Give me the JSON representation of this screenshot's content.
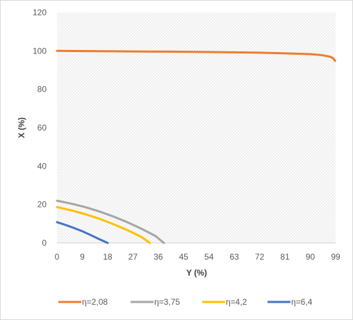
{
  "chart_data": {
    "type": "line",
    "title": "",
    "xlabel": "Y (%)",
    "ylabel": "X (%)",
    "xlim": [
      0,
      99
    ],
    "ylim": [
      0,
      120
    ],
    "xticks": [
      0,
      9,
      18,
      27,
      36,
      45,
      54,
      63,
      72,
      81,
      90,
      99
    ],
    "yticks": [
      0,
      20,
      40,
      60,
      80,
      100,
      120
    ],
    "grid": "hatched-plot-area",
    "legend_position": "bottom",
    "series": [
      {
        "name": "η=2,08",
        "color": "#ED7D31",
        "x": [
          0,
          10,
          20,
          30,
          40,
          50,
          60,
          70,
          80,
          90,
          94,
          97,
          98,
          98.8
        ],
        "y": [
          100,
          99.9,
          99.8,
          99.7,
          99.6,
          99.5,
          99.3,
          99.1,
          98.8,
          98.3,
          97.8,
          97,
          96.3,
          94.8
        ]
      },
      {
        "name": "η=3,75",
        "color": "#A5A5A5",
        "x": [
          0,
          5,
          10,
          15,
          20,
          25,
          30,
          35,
          38
        ],
        "y": [
          22,
          20.5,
          18.7,
          16.4,
          13.8,
          10.8,
          7.4,
          3.6,
          0
        ]
      },
      {
        "name": "η=4,2",
        "color": "#FFC000",
        "x": [
          0,
          5,
          10,
          15,
          20,
          25,
          30,
          33
        ],
        "y": [
          18.7,
          17,
          15,
          12.6,
          9.8,
          6.7,
          3.1,
          0
        ]
      },
      {
        "name": "η=6,4",
        "color": "#4472C4",
        "x": [
          0,
          3,
          6,
          9,
          12,
          15,
          18
        ],
        "y": [
          10.8,
          9.4,
          7.8,
          6.1,
          4.1,
          2,
          0
        ]
      }
    ]
  }
}
